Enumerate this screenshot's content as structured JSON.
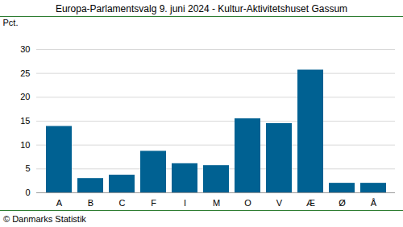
{
  "chart_data": {
    "type": "bar",
    "title": "Europa-Parlamentsvalg 9. juni 2024 - Kultur-Aktivitetshuset Gassum",
    "y_label": "Pct.",
    "caption": "© Danmarks Statistik",
    "categories": [
      "A",
      "B",
      "C",
      "F",
      "I",
      "M",
      "O",
      "V",
      "Æ",
      "Ø",
      "Å"
    ],
    "values": [
      13.9,
      3.0,
      3.7,
      8.7,
      6.1,
      5.7,
      15.5,
      14.5,
      25.7,
      2.0,
      2.0
    ],
    "color": "#006192",
    "ylim": [
      0,
      30
    ],
    "yticks": [
      0,
      5,
      10,
      15,
      20,
      25,
      30
    ],
    "grid": true
  }
}
